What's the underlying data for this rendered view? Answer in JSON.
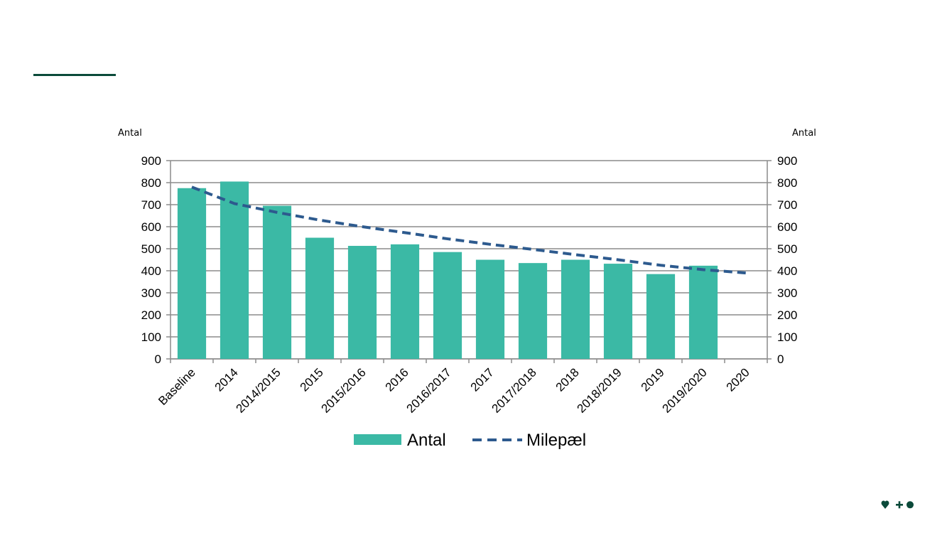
{
  "chart_data": {
    "type": "bar",
    "categories": [
      "Baseline",
      "2014",
      "2014/2015",
      "2015",
      "2015/2016",
      "2016",
      "2016/2017",
      "2017",
      "2017/2018",
      "2018",
      "2018/2019",
      "2019",
      "2019/2020",
      "2020"
    ],
    "series": [
      {
        "name": "Antal",
        "type": "bar",
        "color": "#3bb9a5",
        "values": [
          775,
          805,
          695,
          550,
          513,
          520,
          485,
          450,
          435,
          450,
          432,
          385,
          423,
          null
        ]
      },
      {
        "name": "Milepæl",
        "type": "line",
        "style": "dashed",
        "color": "#2d5a8e",
        "values": [
          780,
          705,
          665,
          630,
          600,
          573,
          545,
          520,
          497,
          473,
          450,
          425,
          405,
          390
        ]
      }
    ],
    "ylabel": "Antal",
    "ylabel_right": "Antal",
    "ylim": [
      0,
      900
    ],
    "yticks": [
      0,
      100,
      200,
      300,
      400,
      500,
      600,
      700,
      800,
      900
    ],
    "grid": true,
    "legend_position": "bottom"
  },
  "colors": {
    "accent": "#0b4a3a",
    "bar": "#3bb9a5",
    "line": "#2d5a8e"
  },
  "logo_icons": [
    "heart-icon",
    "plus-icon",
    "circle-icon"
  ]
}
